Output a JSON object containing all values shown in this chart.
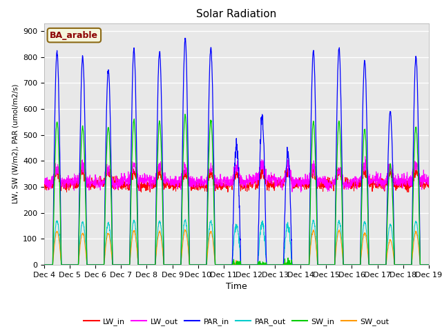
{
  "title": "Solar Radiation",
  "ylabel": "LW, SW (W/m2), PAR (umol/m2/s)",
  "xlabel": "Time",
  "ylim": [
    0,
    930
  ],
  "yticks": [
    0,
    100,
    200,
    300,
    400,
    500,
    600,
    700,
    800,
    900
  ],
  "fig_bg": "#ffffff",
  "plot_bg": "#e8e8e8",
  "annotation_text": "BA_arable",
  "annotation_color": "#8b0000",
  "annotation_bg": "#f5f5dc",
  "series_colors": {
    "LW_in": "#ff0000",
    "LW_out": "#ff00ff",
    "PAR_in": "#0000ff",
    "PAR_out": "#00cccc",
    "SW_in": "#00cc00",
    "SW_out": "#ff9900"
  },
  "n_days": 15,
  "start_day": 4,
  "par_in_peaks": [
    820,
    800,
    750,
    830,
    820,
    870,
    835,
    465,
    570,
    430,
    825,
    830,
    785,
    590,
    800
  ],
  "sw_in_peaks": [
    550,
    530,
    530,
    555,
    550,
    575,
    555,
    0,
    0,
    0,
    548,
    550,
    520,
    385,
    530
  ],
  "par_out_peaks": [
    170,
    165,
    160,
    170,
    168,
    170,
    168,
    155,
    160,
    150,
    170,
    168,
    165,
    155,
    168
  ],
  "sw_out_peaks": [
    130,
    120,
    120,
    130,
    128,
    133,
    128,
    0,
    0,
    0,
    130,
    130,
    122,
    95,
    126
  ]
}
